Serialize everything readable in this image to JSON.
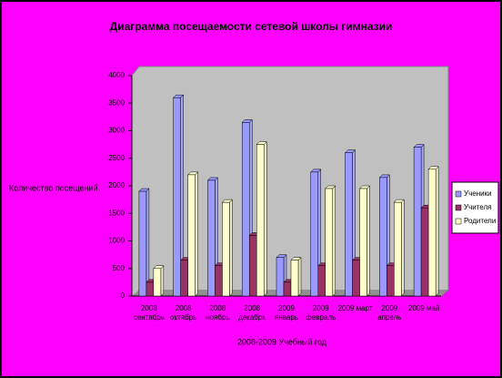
{
  "chart_data": {
    "type": "bar",
    "title": "Диаграмма посещаемости сетевой школы гимназии",
    "y_label": "Количество посещений",
    "x_label": "2008-2009 Учебный год",
    "categories": [
      "2008 сентябрь",
      "2008 октябрь",
      "2008 ноябрь",
      "2008 декабрь",
      "2009 январь",
      "2009 февраль",
      "2009 март",
      "2009 апрель",
      "2009 май"
    ],
    "series": [
      {
        "name": "Ученики",
        "color": "#9999ff",
        "values": [
          1900,
          3600,
          2100,
          3150,
          700,
          2250,
          2600,
          2150,
          2700
        ]
      },
      {
        "name": "Учителя",
        "color": "#993366",
        "values": [
          250,
          650,
          550,
          1100,
          250,
          550,
          650,
          550,
          1600
        ]
      },
      {
        "name": "Родители",
        "color": "#ffffcc",
        "values": [
          500,
          2200,
          1700,
          2750,
          650,
          1950,
          1950,
          1700,
          2300
        ]
      }
    ],
    "ylim": [
      0,
      4000
    ],
    "yticks": [
      0,
      500,
      1000,
      1500,
      2000,
      2500,
      3000,
      3500,
      4000
    ],
    "grid": false,
    "legend": "right"
  }
}
